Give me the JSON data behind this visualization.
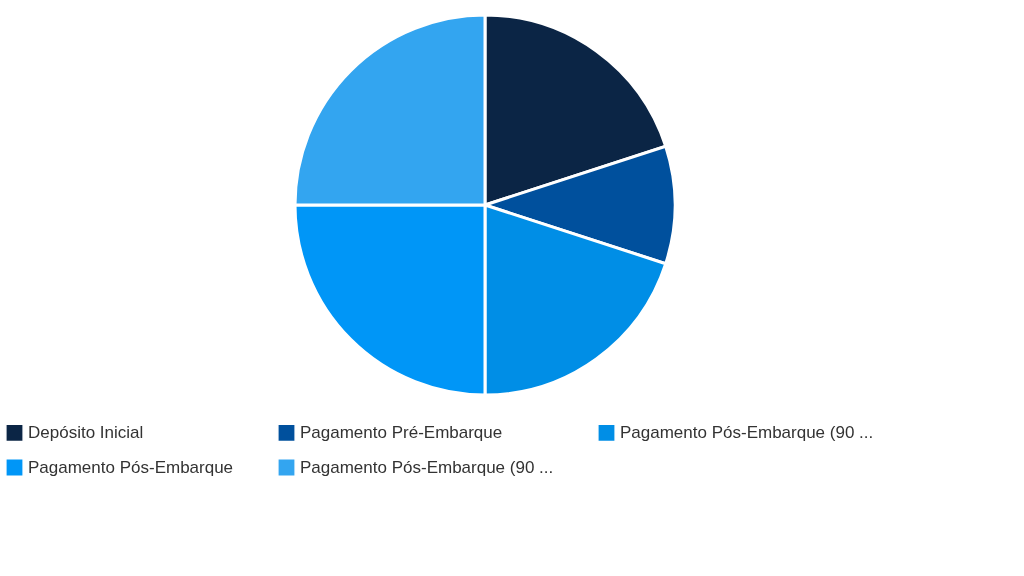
{
  "chart_data": {
    "type": "pie",
    "categories": [
      "Depósito Inicial",
      "Pagamento Pré-Embarque",
      "Pagamento Pós-Embarque (90 ...",
      "Pagamento Pós-Embarque",
      "Pagamento Pós-Embarque (90 ..."
    ],
    "values": [
      20,
      10,
      20,
      25,
      25
    ],
    "colors": [
      "#0b2545",
      "#00509d",
      "#008ee6",
      "#0096f7",
      "#33a5f0"
    ],
    "legend": "bottom"
  }
}
